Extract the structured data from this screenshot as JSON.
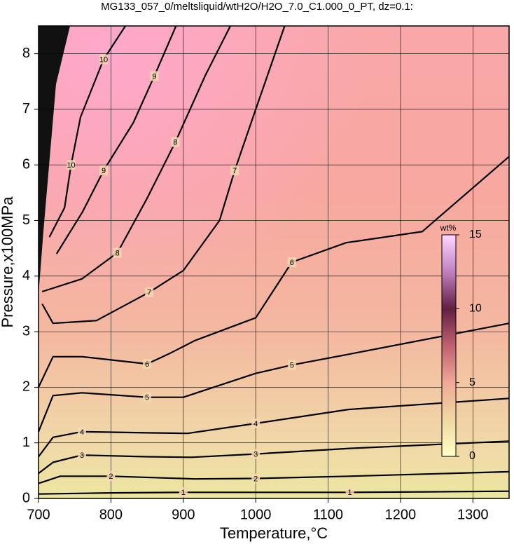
{
  "chart_data": {
    "type": "contour",
    "title": "MG133_057_0/meltsliquid/wtH2O/H2O_7.0_C1.000_0_PT, dz=0.1:",
    "x_label": "Temperature,°C",
    "y_label": "Pressure,x100MPa",
    "xlim": [
      700,
      1350
    ],
    "xticks": [
      700,
      800,
      900,
      1000,
      1100,
      1200,
      1300
    ],
    "ylim": [
      0,
      8.5
    ],
    "yticks": [
      0,
      1,
      2,
      3,
      4,
      5,
      6,
      7,
      8
    ],
    "grid": true,
    "contours": [
      {
        "level": 1,
        "x": [
          700,
          800,
          900,
          1000,
          1130,
          1250,
          1350
        ],
        "values": [
          0.08,
          0.1,
          0.11,
          0.11,
          0.11,
          0.12,
          0.13
        ]
      },
      {
        "level": 2,
        "x": [
          700,
          730,
          800,
          916,
          1000,
          1130,
          1350
        ],
        "values": [
          0.27,
          0.4,
          0.4,
          0.35,
          0.36,
          0.4,
          0.48
        ]
      },
      {
        "level": 3,
        "x": [
          700,
          720,
          760,
          850,
          911,
          1000,
          1130,
          1350
        ],
        "values": [
          0.45,
          0.65,
          0.78,
          0.75,
          0.74,
          0.8,
          0.9,
          1.03
        ]
      },
      {
        "level": 4,
        "x": [
          700,
          720,
          760,
          850,
          906,
          1000,
          1128,
          1350
        ],
        "values": [
          0.75,
          1.1,
          1.2,
          1.18,
          1.17,
          1.35,
          1.6,
          1.8
        ]
      },
      {
        "level": 5,
        "x": [
          700,
          720,
          760,
          850,
          900,
          1000,
          1050,
          1123,
          1350
        ],
        "values": [
          1.2,
          1.85,
          1.9,
          1.82,
          1.82,
          2.25,
          2.4,
          2.58,
          3.15
        ]
      },
      {
        "level": 6,
        "x": [
          700,
          720,
          760,
          850,
          880,
          916,
          1000,
          1050,
          1125,
          1230,
          1350
        ],
        "values": [
          2.0,
          2.55,
          2.55,
          2.42,
          2.6,
          2.84,
          3.25,
          4.25,
          4.6,
          4.8,
          6.15
        ]
      },
      {
        "level": 7,
        "x": [
          705,
          720,
          780,
          853,
          900,
          950,
          971,
          1000,
          1040
        ],
        "values": [
          3.5,
          3.15,
          3.2,
          3.71,
          4.1,
          5.0,
          5.9,
          7.0,
          8.5
        ]
      },
      {
        "level": 8,
        "x": [
          705,
          760,
          809,
          850,
          889,
          930,
          965
        ],
        "values": [
          3.72,
          3.95,
          4.42,
          5.4,
          6.41,
          7.6,
          8.5
        ]
      },
      {
        "level": 9,
        "x": [
          725,
          761,
          790,
          831,
          860,
          890
        ],
        "values": [
          4.4,
          5.16,
          5.9,
          6.76,
          7.6,
          8.5
        ]
      },
      {
        "level": 10,
        "x": [
          715,
          736,
          745,
          758,
          790,
          820
        ],
        "values": [
          4.7,
          5.23,
          6.0,
          6.86,
          7.9,
          8.5
        ]
      }
    ],
    "colorbar": {
      "label": "wt%",
      "clim": [
        0,
        15
      ],
      "ticks": [
        0,
        5,
        10,
        15
      ],
      "colors": [
        "#ffffc8",
        "#f0d8a0",
        "#f0a898",
        "#c06070",
        "#602040",
        "#c080c0",
        "#ffd8ff"
      ]
    }
  }
}
